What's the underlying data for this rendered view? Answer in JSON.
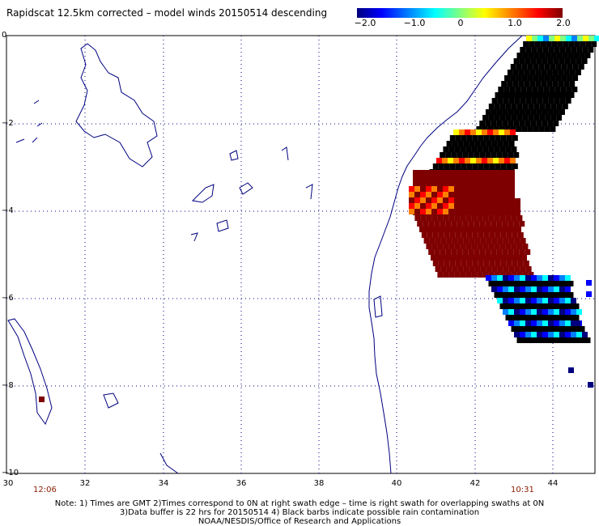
{
  "title": "Rapidscat 12.5km corrected – model winds 20150514 descending",
  "colorbar": {
    "ticks": [
      "−2.0",
      "−1.0",
      "0",
      "1.0",
      "2.0"
    ],
    "colors": [
      "#00007f",
      "#0000ff",
      "#0080ff",
      "#00ffff",
      "#80ff80",
      "#ffff00",
      "#ff8000",
      "#ff0000",
      "#7f0000"
    ]
  },
  "map": {
    "lon_ticks": [
      "30",
      "32",
      "34",
      "36",
      "38",
      "40",
      "42",
      "44"
    ],
    "lat_ticks": [
      "0",
      "−2",
      "−4",
      "−6",
      "−8",
      "−10"
    ],
    "lon_range": [
      30,
      45
    ],
    "lat_range": [
      0,
      -10
    ],
    "grid": "dotted"
  },
  "times": {
    "left": "12:06",
    "right": "10:31"
  },
  "notes": [
    "Note: 1) Times are GMT 2)Times correspond to 0N at right swath edge – time is right swath for overlapping swaths at 0N",
    "3)Data buffer is 22 hrs for 20150514 4) Black barbs indicate possible rain contamination",
    "NOAA/NESDIS/Office of Research and Applications"
  ]
}
